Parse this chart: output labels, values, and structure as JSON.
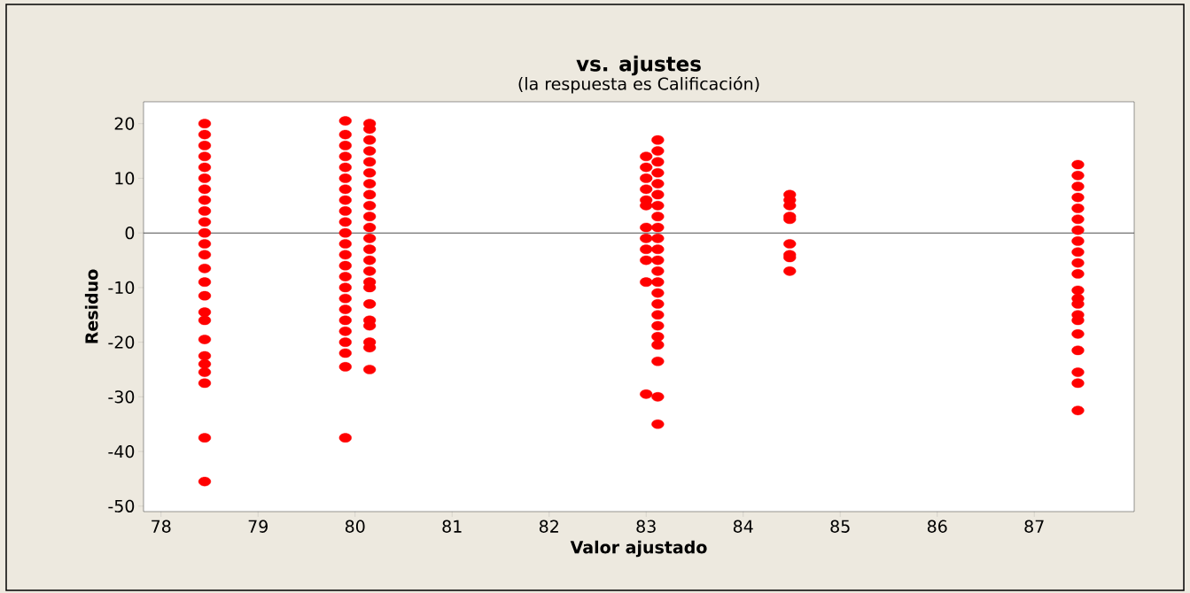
{
  "chart_data": {
    "type": "scatter",
    "title": "vs. ajustes",
    "subtitle": "(la respuesta es Calificación)",
    "xlabel": "Valor ajustado",
    "ylabel": "Residuo",
    "xlim": [
      77.82,
      88.03
    ],
    "ylim": [
      -51,
      24
    ],
    "xticks": [
      78,
      79,
      80,
      81,
      82,
      83,
      84,
      85,
      86,
      87
    ],
    "yticks": [
      -50,
      -40,
      -30,
      -20,
      -10,
      0,
      10,
      20
    ],
    "ref_lines": [
      {
        "axis": "y",
        "value": 0,
        "color": "#4d4d4d"
      }
    ],
    "series": [
      {
        "color": "#ff0000",
        "x": [
          78.45,
          78.45,
          78.45,
          78.45,
          78.45,
          78.45,
          78.45,
          78.45,
          78.45,
          78.45,
          78.45,
          78.45,
          78.45,
          78.45,
          78.45,
          78.45,
          78.45,
          78.45,
          78.45,
          78.45,
          78.45,
          78.45,
          78.45,
          78.45,
          78.45
        ],
        "values": [
          20,
          18,
          16,
          14,
          12,
          10,
          8,
          6,
          4,
          2,
          0,
          -2,
          -4,
          -6.5,
          -9,
          -11.5,
          -14.5,
          -16,
          -19.5,
          -22.5,
          -24,
          -25.5,
          -27.5,
          -37.5,
          -45.5
        ]
      },
      {
        "color": "#ff0000",
        "x": [
          79.9,
          79.9,
          79.9,
          79.9,
          79.9,
          79.9,
          79.9,
          79.9,
          79.9,
          79.9,
          79.9,
          79.9,
          79.9,
          79.9,
          79.9,
          79.9,
          79.9,
          79.9,
          79.9,
          79.9,
          79.9,
          79.9,
          79.9,
          79.9
        ],
        "values": [
          20.5,
          18,
          16,
          14,
          12,
          10,
          8,
          6,
          4,
          2,
          0,
          -2,
          -4,
          -6,
          -8,
          -10,
          -12,
          -14,
          -16,
          -18,
          -20,
          -22,
          -24.5,
          -37.5
        ]
      },
      {
        "color": "#ff0000",
        "x": [
          80.15,
          80.15,
          80.15,
          80.15,
          80.15,
          80.15,
          80.15,
          80.15,
          80.15,
          80.15,
          80.15,
          80.15,
          80.15,
          80.15,
          80.15,
          80.15,
          80.15,
          80.15,
          80.15,
          80.15,
          80.15,
          80.15,
          80.15
        ],
        "values": [
          20,
          19,
          17,
          15,
          13,
          11,
          9,
          7,
          5,
          3,
          1,
          -1,
          -3,
          -5,
          -7,
          -9,
          -10,
          -13,
          -16,
          -17,
          -20,
          -21,
          -25
        ]
      },
      {
        "color": "#ff0000",
        "x": [
          83.0,
          83.0,
          83.0,
          83.0,
          83.0,
          83.0,
          83.0,
          83.0,
          83.0,
          83.0,
          83.0,
          83.0
        ],
        "values": [
          14,
          12,
          10,
          8,
          6,
          5,
          1,
          -1,
          -3,
          -5,
          -9,
          -29.5
        ]
      },
      {
        "color": "#ff0000",
        "x": [
          83.12,
          83.12,
          83.12,
          83.12,
          83.12,
          83.12,
          83.12,
          83.12,
          83.12,
          83.12,
          83.12,
          83.12,
          83.12,
          83.12,
          83.12,
          83.12,
          83.12,
          83.12,
          83.12,
          83.12,
          83.12,
          83.12,
          83.12
        ],
        "values": [
          17,
          15,
          13,
          11,
          9,
          7,
          5,
          3,
          1,
          -1,
          -3,
          -5,
          -7,
          -9,
          -11,
          -13,
          -15,
          -17,
          -19,
          -20.5,
          -23.5,
          -30,
          -35
        ]
      },
      {
        "color": "#ff0000",
        "x": [
          84.48,
          84.48,
          84.48,
          84.48,
          84.48,
          84.48,
          84.48,
          84.48,
          84.48
        ],
        "values": [
          7,
          6,
          5,
          3,
          2.5,
          -2,
          -4,
          -4.5,
          -7
        ]
      },
      {
        "color": "#ff0000",
        "x": [
          87.45,
          87.45,
          87.45,
          87.45,
          87.45,
          87.45,
          87.45,
          87.45,
          87.45,
          87.45,
          87.45,
          87.45,
          87.45,
          87.45,
          87.45,
          87.45,
          87.45,
          87.45,
          87.45,
          87.45,
          87.45
        ],
        "values": [
          12.5,
          10.5,
          8.5,
          6.5,
          4.5,
          2.5,
          0.5,
          -1.5,
          -3.5,
          -5.5,
          -7.5,
          -10.5,
          -12,
          -13,
          -15,
          -16,
          -18.5,
          -21.5,
          -25.5,
          -27.5,
          -32.5
        ]
      }
    ]
  }
}
